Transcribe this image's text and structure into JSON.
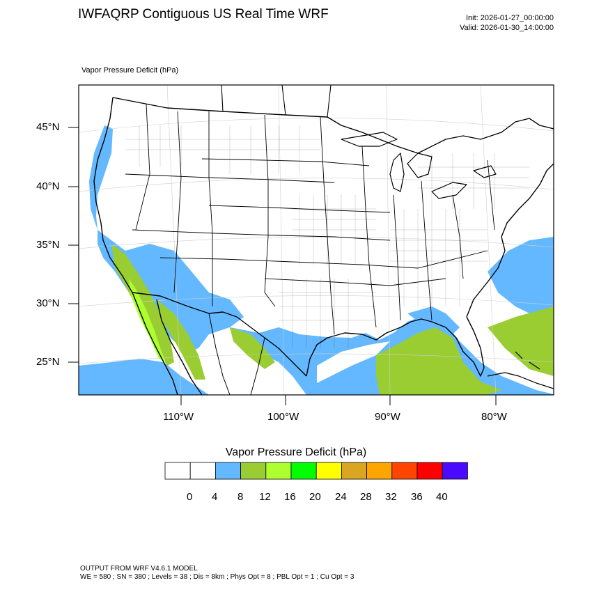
{
  "header": {
    "title": "IWFAQRP Contiguous US Real Time WRF",
    "init": "Init: 2026-01-27_00:00:00",
    "valid": "Valid: 2026-01-30_14:00:00",
    "field_label": "Vapor Pressure Deficit   (hPa)"
  },
  "map": {
    "lat_labels": [
      "45°N",
      "40°N",
      "35°N",
      "30°N",
      "25°N"
    ],
    "lon_labels": [
      "110°W",
      "100°W",
      "90°W",
      "80°W"
    ]
  },
  "colorbar": {
    "title": "Vapor Pressure Deficit  (hPa)",
    "tick_labels": [
      "0",
      "4",
      "8",
      "12",
      "16",
      "20",
      "24",
      "28",
      "32",
      "36",
      "40"
    ],
    "colors": [
      "#ffffff",
      "#ffffff",
      "#63b8ff",
      "#9acd32",
      "#adff2f",
      "#00ff00",
      "#ffff00",
      "#daa520",
      "#ffa500",
      "#ff4500",
      "#ff0000",
      "#4a0aff"
    ]
  },
  "footer": {
    "line1": "OUTPUT FROM WRF V4.6.1 MODEL",
    "line2": "WE = 580 ; SN = 380 ; Levels = 38 ; Dis = 8km ; Phys Opt = 8 ; PBL Opt = 1 ; Cu Opt = 3"
  }
}
